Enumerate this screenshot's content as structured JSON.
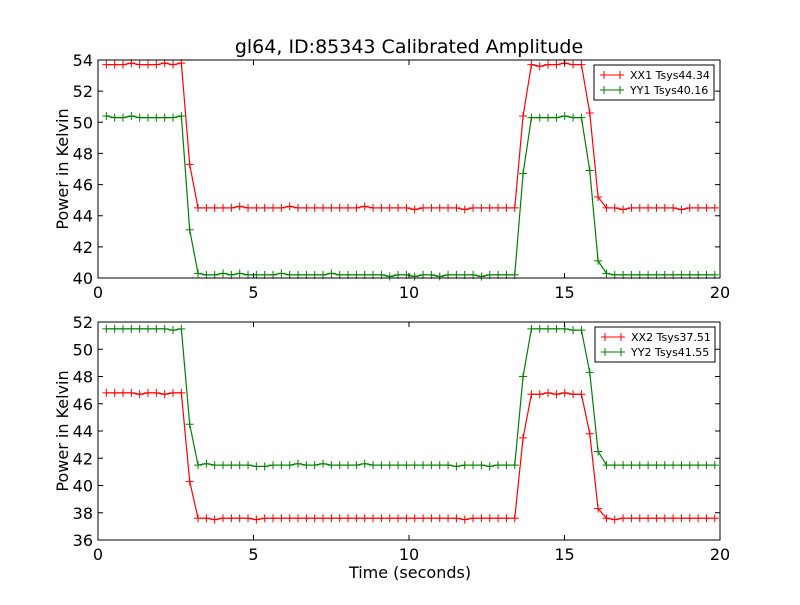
{
  "chart_data": {
    "type": "line",
    "title": "gl64, ID:85343 Calibrated Amplitude",
    "xlabel": "Time (seconds)",
    "x_start": 0.268,
    "x_step": 0.268,
    "colors": {
      "XX": "#ff0000",
      "YY": "#008000"
    },
    "subplots": [
      {
        "ylabel": "Power in Kelvin",
        "xlim": [
          0,
          20
        ],
        "ylim": [
          40,
          54
        ],
        "xticks": [
          "0",
          "5",
          "10",
          "15",
          "20"
        ],
        "yticks": [
          "40",
          "42",
          "44",
          "46",
          "48",
          "50",
          "52",
          "54"
        ],
        "legend_position": "top-right",
        "series": [
          {
            "name": "XX1 Tsys44.34",
            "color": "#ff0000",
            "values": [
              53.7,
              53.7,
              53.7,
              53.8,
              53.7,
              53.7,
              53.7,
              53.8,
              53.7,
              53.8,
              47.3,
              44.5,
              44.5,
              44.5,
              44.5,
              44.5,
              44.6,
              44.5,
              44.5,
              44.5,
              44.5,
              44.5,
              44.6,
              44.5,
              44.5,
              44.5,
              44.5,
              44.5,
              44.5,
              44.5,
              44.5,
              44.6,
              44.5,
              44.5,
              44.5,
              44.5,
              44.5,
              44.4,
              44.5,
              44.5,
              44.5,
              44.5,
              44.5,
              44.4,
              44.5,
              44.5,
              44.5,
              44.5,
              44.5,
              44.5,
              50.4,
              53.7,
              53.6,
              53.7,
              53.7,
              53.8,
              53.7,
              53.7,
              50.6,
              45.2,
              44.5,
              44.5,
              44.4,
              44.5,
              44.5,
              44.5,
              44.5,
              44.5,
              44.5,
              44.4,
              44.5,
              44.5,
              44.5,
              44.5
            ]
          },
          {
            "name": "YY1 Tsys40.16",
            "color": "#008000",
            "values": [
              50.4,
              50.3,
              50.3,
              50.4,
              50.3,
              50.3,
              50.3,
              50.3,
              50.3,
              50.4,
              43.1,
              40.3,
              40.2,
              40.2,
              40.3,
              40.2,
              40.3,
              40.2,
              40.2,
              40.2,
              40.2,
              40.3,
              40.2,
              40.2,
              40.2,
              40.2,
              40.2,
              40.3,
              40.2,
              40.2,
              40.2,
              40.2,
              40.2,
              40.2,
              40.1,
              40.2,
              40.2,
              40.1,
              40.2,
              40.2,
              40.1,
              40.2,
              40.2,
              40.2,
              40.2,
              40.1,
              40.2,
              40.2,
              40.2,
              40.2,
              46.7,
              50.3,
              50.3,
              50.3,
              50.3,
              50.4,
              50.3,
              50.3,
              46.9,
              41.1,
              40.3,
              40.2,
              40.2,
              40.2,
              40.2,
              40.2,
              40.2,
              40.2,
              40.2,
              40.2,
              40.2,
              40.2,
              40.2,
              40.2
            ]
          }
        ]
      },
      {
        "ylabel": "Power in Kelvin",
        "xlim": [
          0,
          20
        ],
        "ylim": [
          36,
          52
        ],
        "xticks": [
          "0",
          "5",
          "10",
          "15",
          "20"
        ],
        "yticks": [
          "36",
          "38",
          "40",
          "42",
          "44",
          "46",
          "48",
          "50",
          "52"
        ],
        "legend_position": "top-right",
        "series": [
          {
            "name": "XX2 Tsys37.51",
            "color": "#ff0000",
            "values": [
              46.8,
              46.8,
              46.8,
              46.8,
              46.7,
              46.8,
              46.8,
              46.7,
              46.8,
              46.8,
              40.3,
              37.6,
              37.6,
              37.5,
              37.6,
              37.6,
              37.6,
              37.6,
              37.5,
              37.6,
              37.6,
              37.6,
              37.6,
              37.6,
              37.6,
              37.6,
              37.6,
              37.6,
              37.6,
              37.6,
              37.6,
              37.6,
              37.6,
              37.6,
              37.6,
              37.6,
              37.6,
              37.6,
              37.6,
              37.6,
              37.6,
              37.6,
              37.6,
              37.5,
              37.6,
              37.6,
              37.6,
              37.6,
              37.6,
              37.6,
              43.5,
              46.7,
              46.7,
              46.8,
              46.7,
              46.8,
              46.7,
              46.7,
              43.8,
              38.3,
              37.6,
              37.5,
              37.6,
              37.6,
              37.6,
              37.6,
              37.6,
              37.6,
              37.6,
              37.6,
              37.6,
              37.6,
              37.6,
              37.6
            ]
          },
          {
            "name": "YY2 Tsys41.55",
            "color": "#008000",
            "values": [
              51.5,
              51.5,
              51.5,
              51.5,
              51.5,
              51.5,
              51.5,
              51.5,
              51.4,
              51.5,
              44.5,
              41.5,
              41.6,
              41.5,
              41.5,
              41.5,
              41.5,
              41.5,
              41.4,
              41.4,
              41.5,
              41.5,
              41.5,
              41.6,
              41.5,
              41.5,
              41.6,
              41.5,
              41.5,
              41.5,
              41.5,
              41.6,
              41.5,
              41.5,
              41.5,
              41.5,
              41.5,
              41.5,
              41.5,
              41.5,
              41.5,
              41.5,
              41.4,
              41.5,
              41.5,
              41.5,
              41.4,
              41.5,
              41.5,
              41.5,
              48.0,
              51.5,
              51.5,
              51.5,
              51.5,
              51.5,
              51.4,
              51.4,
              48.3,
              42.5,
              41.5,
              41.5,
              41.5,
              41.5,
              41.5,
              41.5,
              41.5,
              41.5,
              41.5,
              41.5,
              41.5,
              41.5,
              41.5,
              41.5
            ]
          }
        ]
      }
    ]
  }
}
